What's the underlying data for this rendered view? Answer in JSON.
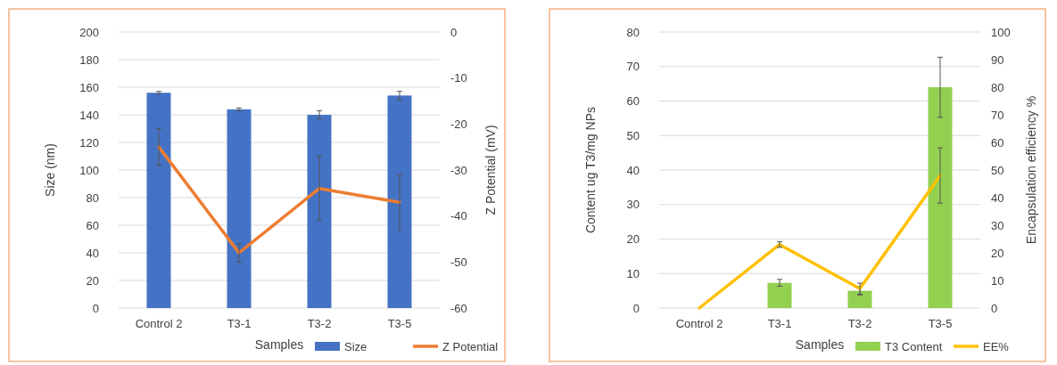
{
  "chart_data": [
    {
      "type": "bar",
      "xlabel": "Samples",
      "ylabel": "Size (nm)",
      "y2label": "Z Potential (mV)",
      "categories": [
        "Control 2",
        "T3-1",
        "T3-2",
        "T3-5"
      ],
      "series": [
        {
          "name": "Size",
          "color": "#4472c4",
          "values": [
            156,
            144,
            140,
            154
          ],
          "errors": [
            1,
            1,
            3,
            3
          ]
        },
        {
          "name": "Z Potential",
          "type": "line",
          "axis": "y2",
          "color": "#ed7d31",
          "values": [
            -25,
            -48,
            -34,
            -37
          ],
          "errors": [
            4,
            2,
            7,
            6
          ]
        }
      ],
      "ylim": [
        0,
        200
      ],
      "yticks": [
        0,
        20,
        40,
        60,
        80,
        100,
        120,
        140,
        160,
        180,
        200
      ],
      "y2lim": [
        -60,
        0
      ],
      "y2ticks": [
        -60,
        -50,
        -40,
        -30,
        -20,
        -10,
        0
      ],
      "grid": "y",
      "legend": "bottom right"
    },
    {
      "type": "bar",
      "xlabel": "Samples",
      "ylabel": "Content ug T3/mg NPs",
      "y2label": "Encapsulation efficiency %",
      "categories": [
        "Control 2",
        "T3-1",
        "T3-2",
        "T3-5"
      ],
      "series": [
        {
          "name": "T3 Content",
          "color": "#92d050",
          "values": [
            0,
            7.3,
            5,
            64
          ],
          "errors": [
            null,
            1,
            1.2,
            8.7
          ]
        },
        {
          "name": "EE%",
          "type": "line",
          "axis": "y2",
          "color": "#ffc000",
          "values": [
            0,
            23,
            7,
            48
          ],
          "errors": [
            null,
            1,
            2,
            10
          ]
        }
      ],
      "ylim": [
        0,
        80
      ],
      "yticks": [
        0,
        10,
        20,
        30,
        40,
        50,
        60,
        70,
        80
      ],
      "y2lim": [
        0,
        100
      ],
      "y2ticks": [
        0,
        10,
        20,
        30,
        40,
        50,
        60,
        70,
        80,
        90,
        100
      ],
      "grid": "y",
      "legend": "bottom right"
    }
  ]
}
